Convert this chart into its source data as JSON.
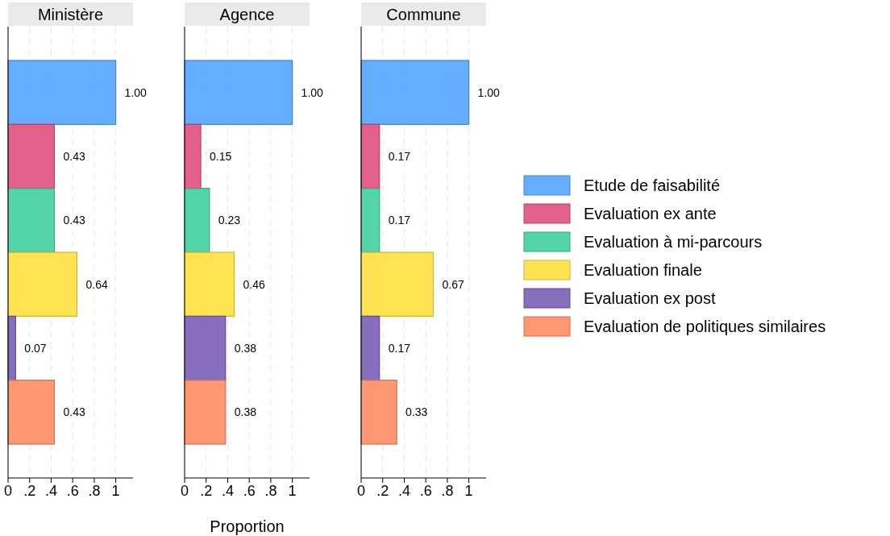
{
  "chart_data": [
    {
      "type": "bar",
      "title": "Ministère",
      "orientation": "horizontal",
      "categories": [
        null
      ],
      "xlim": [
        0,
        1.16
      ],
      "xticks": [
        {
          "value": 0,
          "label": "0"
        },
        {
          "value": 0.2,
          "label": ".2"
        },
        {
          "value": 0.4,
          "label": ".4"
        },
        {
          "value": 0.6,
          "label": ".6"
        },
        {
          "value": 0.8,
          "label": ".8"
        },
        {
          "value": 1,
          "label": "1"
        }
      ],
      "grid": "x",
      "legend": false,
      "series": [
        {
          "color": "#54a4ff",
          "values": [
            1.0
          ],
          "value_labels": [
            "1.00"
          ]
        },
        {
          "color": "#e0507f",
          "values": [
            0.43
          ],
          "value_labels": [
            "0.43"
          ]
        },
        {
          "color": "#40d0a0",
          "values": [
            0.43
          ],
          "value_labels": [
            "0.43"
          ]
        },
        {
          "color": "#ffe040",
          "values": [
            0.64
          ],
          "value_labels": [
            "0.64"
          ]
        },
        {
          "color": "#7b5eb5",
          "values": [
            0.07
          ],
          "value_labels": [
            "0.07"
          ]
        },
        {
          "color": "#ff8c64",
          "values": [
            0.43
          ],
          "value_labels": [
            "0.43"
          ]
        }
      ]
    },
    {
      "type": "bar",
      "title": "Agence",
      "xlabel": "Proportion",
      "orientation": "horizontal",
      "categories": [
        null
      ],
      "xlim": [
        0,
        1.16
      ],
      "xticks": [
        {
          "value": 0,
          "label": "0"
        },
        {
          "value": 0.2,
          "label": ".2"
        },
        {
          "value": 0.4,
          "label": ".4"
        },
        {
          "value": 0.6,
          "label": ".6"
        },
        {
          "value": 0.8,
          "label": ".8"
        },
        {
          "value": 1,
          "label": "1"
        }
      ],
      "grid": "x",
      "legend": false,
      "series": [
        {
          "color": "#54a4ff",
          "values": [
            1.0
          ],
          "value_labels": [
            "1.00"
          ]
        },
        {
          "color": "#e0507f",
          "values": [
            0.15
          ],
          "value_labels": [
            "0.15"
          ]
        },
        {
          "color": "#40d0a0",
          "values": [
            0.23
          ],
          "value_labels": [
            "0.23"
          ]
        },
        {
          "color": "#ffe040",
          "values": [
            0.46
          ],
          "value_labels": [
            "0.46"
          ]
        },
        {
          "color": "#7b5eb5",
          "values": [
            0.38
          ],
          "value_labels": [
            "0.38"
          ]
        },
        {
          "color": "#ff8c64",
          "values": [
            0.38
          ],
          "value_labels": [
            "0.38"
          ]
        }
      ]
    },
    {
      "type": "bar",
      "title": "Commune",
      "orientation": "horizontal",
      "categories": [
        null
      ],
      "xlim": [
        0,
        1.16
      ],
      "xticks": [
        {
          "value": 0,
          "label": "0"
        },
        {
          "value": 0.2,
          "label": ".2"
        },
        {
          "value": 0.4,
          "label": ".4"
        },
        {
          "value": 0.6,
          "label": ".6"
        },
        {
          "value": 0.8,
          "label": ".8"
        },
        {
          "value": 1,
          "label": "1"
        }
      ],
      "grid": "x",
      "legend": "right",
      "series": [
        {
          "name": "Etude de faisabilité",
          "color": "#54a4ff",
          "values": [
            1.0
          ],
          "value_labels": [
            "1.00"
          ]
        },
        {
          "name": "Evaluation ex ante",
          "color": "#e0507f",
          "values": [
            0.17
          ],
          "value_labels": [
            "0.17"
          ]
        },
        {
          "name": "Evaluation à mi-parcours",
          "color": "#40d0a0",
          "values": [
            0.17
          ],
          "value_labels": [
            "0.17"
          ]
        },
        {
          "name": "Evaluation finale",
          "color": "#ffe040",
          "values": [
            0.67
          ],
          "value_labels": [
            "0.67"
          ]
        },
        {
          "name": "Evaluation ex post",
          "color": "#7b5eb5",
          "values": [
            0.17
          ],
          "value_labels": [
            "0.17"
          ]
        },
        {
          "name": "Evaluation de politiques similaires",
          "color": "#ff8c64",
          "values": [
            0.33
          ],
          "value_labels": [
            "0.33"
          ]
        }
      ]
    }
  ]
}
